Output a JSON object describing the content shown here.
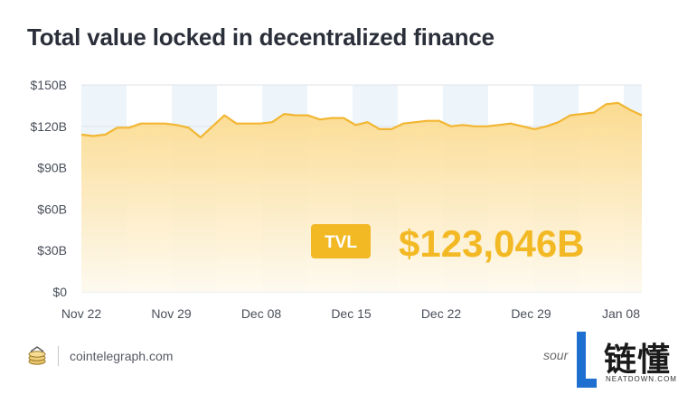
{
  "chart_data": {
    "type": "area",
    "title": "Total value locked in decentralized finance",
    "xlabel": "",
    "ylabel": "",
    "x_tick_labels": [
      "Nov 22",
      "Nov 29",
      "Dec 08",
      "Dec 15",
      "Dec 22",
      "Dec 29",
      "Jan 08"
    ],
    "y_tick_labels": [
      "$150B",
      "$120B",
      "$90B",
      "$60B",
      "$30B",
      "$0"
    ],
    "y_ticks": [
      150,
      120,
      90,
      60,
      30,
      0
    ],
    "ylim": [
      0,
      150
    ],
    "grid": true,
    "series": [
      {
        "values": [
          114,
          113,
          114,
          119,
          119,
          122,
          122,
          122,
          121,
          119,
          112,
          120,
          128,
          122,
          122,
          122,
          123,
          129,
          128,
          128,
          125,
          126,
          126,
          121,
          123,
          118,
          118,
          122,
          123,
          124,
          124,
          120,
          121,
          120,
          120,
          121,
          122,
          120,
          118,
          120,
          123,
          128,
          129,
          130,
          136,
          137,
          132,
          128
        ]
      }
    ],
    "annotation": {
      "label": "TVL",
      "value": "$123,046B"
    }
  },
  "colors": {
    "line": "#f2b632",
    "fill_top": "#fbd98a",
    "fill_bottom": "#fffaee",
    "badge": "#f3b925",
    "big_value": "#f3b925",
    "band": "#eef5fa",
    "grid": "#dfe3e8"
  },
  "footer": {
    "logo_icon": "cointelegraph-coin-icon",
    "site": "cointelegraph.com",
    "source_partial": "sour"
  },
  "watermark": {
    "logo_icon": "neatdown-l-logo-icon",
    "text": "链懂",
    "sub": "NEATDOWN.COM"
  }
}
